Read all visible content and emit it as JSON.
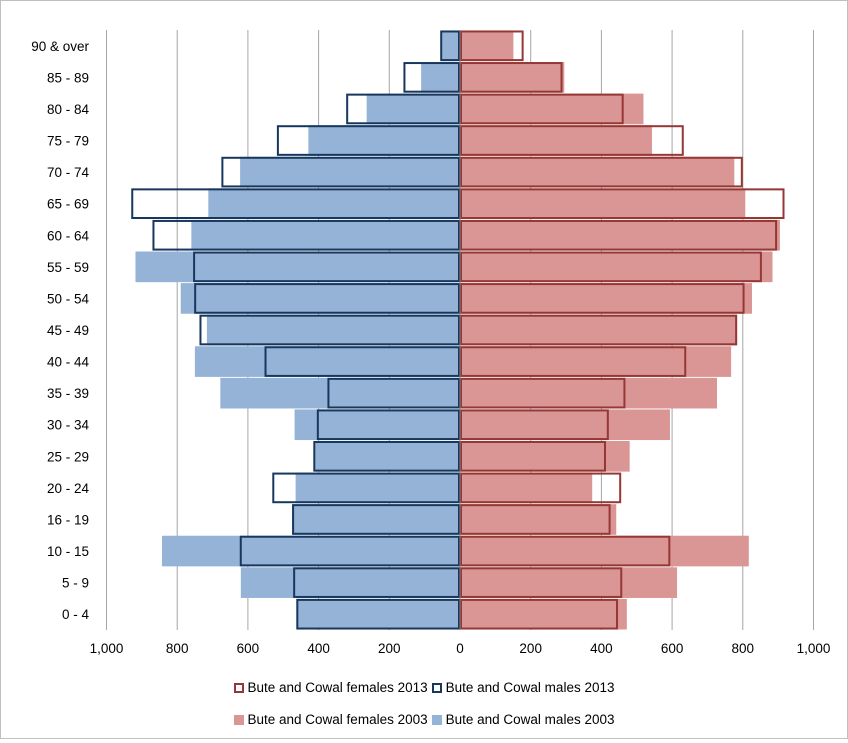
{
  "chart_data": {
    "type": "bar",
    "orientation": "horizontal",
    "categories": [
      "0 - 4",
      "5 - 9",
      "10 - 15",
      "16 - 19",
      "20 - 24",
      "25 - 29",
      "30 - 34",
      "35 - 39",
      "40 - 44",
      "45 - 49",
      "50 - 54",
      "55 - 59",
      "60 - 64",
      "65 - 69",
      "70 - 74",
      "75 - 79",
      "80 - 84",
      "85 - 89",
      "90 & over"
    ],
    "x_tick_labels": [
      "1,000",
      "800",
      "600",
      "400",
      "200",
      "0",
      "200",
      "400",
      "600",
      "800",
      "1,000"
    ],
    "xlim": [
      -1000,
      1000
    ],
    "grid": true,
    "legend_position": "bottom",
    "series": [
      {
        "name": "Bute and Cowal females 2013",
        "style": "outline",
        "color": "#953735",
        "values": [
          447,
          459,
          595,
          426,
          456,
          413,
          421,
          468,
          640,
          784,
          805,
          854,
          897,
          918,
          800,
          633,
          463,
          290,
          180
        ]
      },
      {
        "name": "Bute and Cowal males 2013",
        "style": "outline",
        "color": "#17375e",
        "values": [
          -463,
          -472,
          -623,
          -475,
          -531,
          -415,
          -405,
          -375,
          -553,
          -737,
          -752,
          -755,
          -870,
          -930,
          -675,
          -518,
          -322,
          -160,
          -56
        ]
      },
      {
        "name": "Bute and Cowal females 2003",
        "style": "fill",
        "color": "#da9694",
        "values": [
          472,
          614,
          817,
          442,
          374,
          480,
          594,
          727,
          767,
          784,
          826,
          884,
          905,
          807,
          776,
          543,
          519,
          295,
          151
        ]
      },
      {
        "name": "Bute and Cowal males 2003",
        "style": "fill",
        "color": "#95b3d7",
        "values": [
          -463,
          -620,
          -843,
          -475,
          -465,
          -410,
          -468,
          -678,
          -750,
          -716,
          -790,
          -918,
          -760,
          -712,
          -622,
          -429,
          -264,
          -110,
          -52
        ]
      }
    ]
  }
}
